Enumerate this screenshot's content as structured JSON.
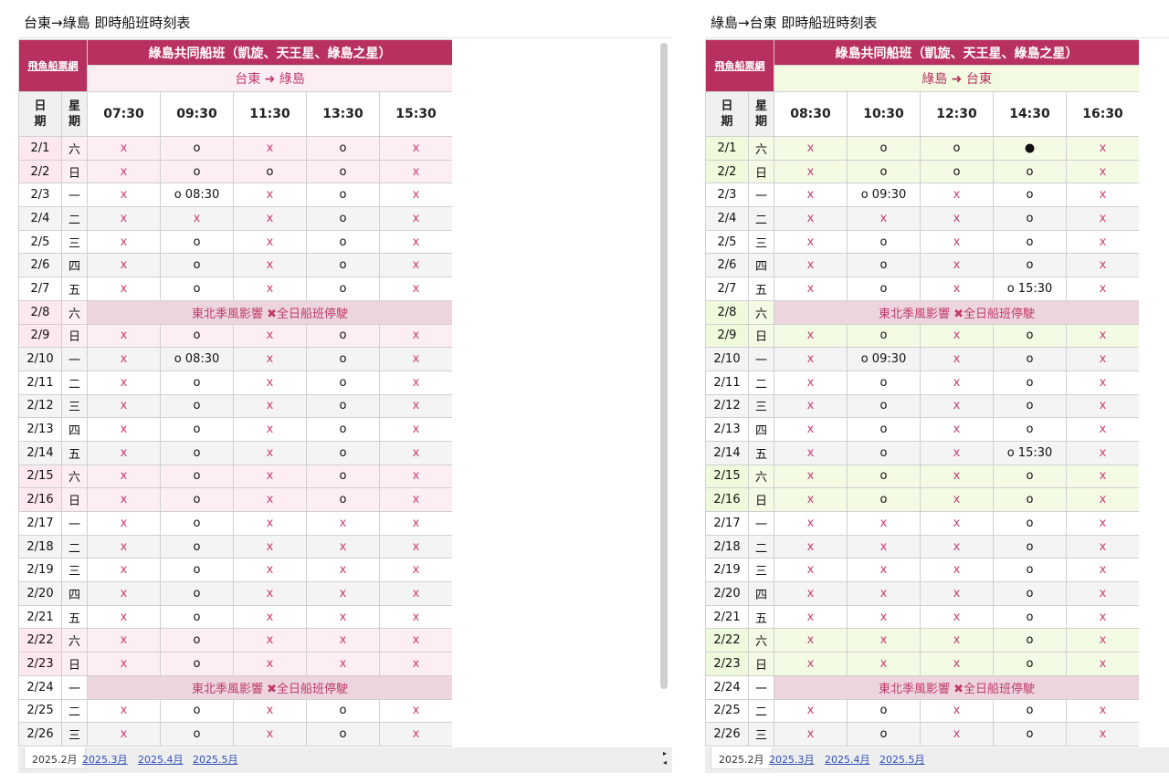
{
  "left": {
    "sheet_title": "台東→綠島 即時船班時刻表",
    "brand": "飛魚船票網",
    "ship_header": "綠島共同船班（凱旋、天王星、綠島之星）",
    "route": "台東 ➜ 綠島",
    "col_date": "日期",
    "col_day": "星期",
    "times": [
      "07:30",
      "09:30",
      "11:30",
      "13:30",
      "15:30"
    ],
    "rows": [
      {
        "date": "2/1",
        "day": "六",
        "weekend": true,
        "v": [
          "x",
          "o",
          "x",
          "o",
          "x"
        ]
      },
      {
        "date": "2/2",
        "day": "日",
        "weekend": true,
        "v": [
          "x",
          "o",
          "o",
          "o",
          "x"
        ]
      },
      {
        "date": "2/3",
        "day": "一",
        "v": [
          "x",
          "o 08:30",
          "x",
          "o",
          "x"
        ]
      },
      {
        "date": "2/4",
        "day": "二",
        "v": [
          "x",
          "x",
          "x",
          "o",
          "x"
        ]
      },
      {
        "date": "2/5",
        "day": "三",
        "v": [
          "x",
          "o",
          "x",
          "o",
          "x"
        ]
      },
      {
        "date": "2/6",
        "day": "四",
        "v": [
          "x",
          "o",
          "x",
          "o",
          "x"
        ]
      },
      {
        "date": "2/7",
        "day": "五",
        "v": [
          "x",
          "o",
          "x",
          "o",
          "x"
        ]
      },
      {
        "date": "2/8",
        "day": "六",
        "weekend": true,
        "notice": "東北季風影響 ✖全日船班停駛"
      },
      {
        "date": "2/9",
        "day": "日",
        "weekend": true,
        "v": [
          "x",
          "o",
          "x",
          "o",
          "x"
        ]
      },
      {
        "date": "2/10",
        "day": "一",
        "v": [
          "x",
          "o 08:30",
          "x",
          "o",
          "x"
        ]
      },
      {
        "date": "2/11",
        "day": "二",
        "v": [
          "x",
          "o",
          "x",
          "o",
          "x"
        ]
      },
      {
        "date": "2/12",
        "day": "三",
        "v": [
          "x",
          "o",
          "x",
          "o",
          "x"
        ]
      },
      {
        "date": "2/13",
        "day": "四",
        "v": [
          "x",
          "o",
          "x",
          "o",
          "x"
        ]
      },
      {
        "date": "2/14",
        "day": "五",
        "v": [
          "x",
          "o",
          "x",
          "o",
          "x"
        ]
      },
      {
        "date": "2/15",
        "day": "六",
        "weekend": true,
        "v": [
          "x",
          "o",
          "x",
          "o",
          "x"
        ]
      },
      {
        "date": "2/16",
        "day": "日",
        "weekend": true,
        "v": [
          "x",
          "o",
          "x",
          "o",
          "x"
        ]
      },
      {
        "date": "2/17",
        "day": "一",
        "v": [
          "x",
          "o",
          "x",
          "x",
          "x"
        ]
      },
      {
        "date": "2/18",
        "day": "二",
        "v": [
          "x",
          "o",
          "x",
          "x",
          "x"
        ]
      },
      {
        "date": "2/19",
        "day": "三",
        "v": [
          "x",
          "o",
          "x",
          "x",
          "x"
        ]
      },
      {
        "date": "2/20",
        "day": "四",
        "v": [
          "x",
          "o",
          "x",
          "x",
          "x"
        ]
      },
      {
        "date": "2/21",
        "day": "五",
        "v": [
          "x",
          "o",
          "x",
          "x",
          "x"
        ]
      },
      {
        "date": "2/22",
        "day": "六",
        "weekend": true,
        "v": [
          "x",
          "o",
          "x",
          "x",
          "x"
        ]
      },
      {
        "date": "2/23",
        "day": "日",
        "weekend": true,
        "v": [
          "x",
          "o",
          "x",
          "x",
          "x"
        ]
      },
      {
        "date": "2/24",
        "day": "一",
        "notice": "東北季風影響 ✖全日船班停駛"
      },
      {
        "date": "2/25",
        "day": "二",
        "v": [
          "x",
          "o",
          "x",
          "o",
          "x"
        ]
      },
      {
        "date": "2/26",
        "day": "三",
        "v": [
          "x",
          "o",
          "x",
          "o",
          "x"
        ]
      }
    ],
    "tabs": [
      "2025.2月",
      "2025.3月",
      "2025.4月",
      "2025.5月"
    ]
  },
  "right": {
    "sheet_title": "綠島→台東 即時船班時刻表",
    "brand": "飛魚船票網",
    "ship_header": "綠島共同船班（凱旋、天王星、綠島之星）",
    "route": "綠島 ➜ 台東",
    "col_date": "日期",
    "col_day": "星期",
    "times": [
      "08:30",
      "10:30",
      "12:30",
      "14:30",
      "16:30"
    ],
    "rows": [
      {
        "date": "2/1",
        "day": "六",
        "weekend": true,
        "v": [
          "x",
          "o",
          "o",
          "●",
          "x"
        ]
      },
      {
        "date": "2/2",
        "day": "日",
        "weekend": true,
        "v": [
          "x",
          "o",
          "o",
          "o",
          "x"
        ]
      },
      {
        "date": "2/3",
        "day": "一",
        "v": [
          "x",
          "o 09:30",
          "x",
          "o",
          "x"
        ]
      },
      {
        "date": "2/4",
        "day": "二",
        "v": [
          "x",
          "x",
          "x",
          "o",
          "x"
        ]
      },
      {
        "date": "2/5",
        "day": "三",
        "v": [
          "x",
          "o",
          "x",
          "o",
          "x"
        ]
      },
      {
        "date": "2/6",
        "day": "四",
        "v": [
          "x",
          "o",
          "x",
          "o",
          "x"
        ]
      },
      {
        "date": "2/7",
        "day": "五",
        "v": [
          "x",
          "o",
          "x",
          "o 15:30",
          "x"
        ]
      },
      {
        "date": "2/8",
        "day": "六",
        "weekend": true,
        "notice": "東北季風影響 ✖全日船班停駛"
      },
      {
        "date": "2/9",
        "day": "日",
        "weekend": true,
        "v": [
          "x",
          "o",
          "x",
          "o",
          "x"
        ]
      },
      {
        "date": "2/10",
        "day": "一",
        "v": [
          "x",
          "o 09:30",
          "x",
          "o",
          "x"
        ]
      },
      {
        "date": "2/11",
        "day": "二",
        "v": [
          "x",
          "o",
          "x",
          "o",
          "x"
        ]
      },
      {
        "date": "2/12",
        "day": "三",
        "v": [
          "x",
          "o",
          "x",
          "o",
          "x"
        ]
      },
      {
        "date": "2/13",
        "day": "四",
        "v": [
          "x",
          "o",
          "x",
          "o",
          "x"
        ]
      },
      {
        "date": "2/14",
        "day": "五",
        "v": [
          "x",
          "o",
          "x",
          "o 15:30",
          "x"
        ]
      },
      {
        "date": "2/15",
        "day": "六",
        "weekend": true,
        "v": [
          "x",
          "o",
          "x",
          "o",
          "x"
        ]
      },
      {
        "date": "2/16",
        "day": "日",
        "weekend": true,
        "v": [
          "x",
          "o",
          "x",
          "o",
          "x"
        ]
      },
      {
        "date": "2/17",
        "day": "一",
        "v": [
          "x",
          "x",
          "x",
          "o",
          "x"
        ]
      },
      {
        "date": "2/18",
        "day": "二",
        "v": [
          "x",
          "x",
          "x",
          "o",
          "x"
        ]
      },
      {
        "date": "2/19",
        "day": "三",
        "v": [
          "x",
          "x",
          "x",
          "o",
          "x"
        ]
      },
      {
        "date": "2/20",
        "day": "四",
        "v": [
          "x",
          "x",
          "x",
          "o",
          "x"
        ]
      },
      {
        "date": "2/21",
        "day": "五",
        "v": [
          "x",
          "x",
          "x",
          "o",
          "x"
        ]
      },
      {
        "date": "2/22",
        "day": "六",
        "weekend": true,
        "v": [
          "x",
          "x",
          "x",
          "o",
          "x"
        ]
      },
      {
        "date": "2/23",
        "day": "日",
        "weekend": true,
        "v": [
          "x",
          "x",
          "x",
          "o",
          "x"
        ]
      },
      {
        "date": "2/24",
        "day": "一",
        "notice": "東北季風影響 ✖全日船班停駛"
      },
      {
        "date": "2/25",
        "day": "二",
        "v": [
          "x",
          "o",
          "x",
          "o",
          "x"
        ]
      },
      {
        "date": "2/26",
        "day": "三",
        "v": [
          "x",
          "o",
          "x",
          "o",
          "x"
        ]
      }
    ],
    "tabs": [
      "2025.2月",
      "2025.3月",
      "2025.4月",
      "2025.5月"
    ]
  },
  "colors": {
    "header_magenta": "#b8305f",
    "unavailable_x": "#cc3d74",
    "left_weekend_pink": "#fdeef4",
    "right_weekend_green": "#f3fbe5",
    "notice_bg": "#ecd5dd",
    "tab_link_blue": "#2f4fb8"
  }
}
